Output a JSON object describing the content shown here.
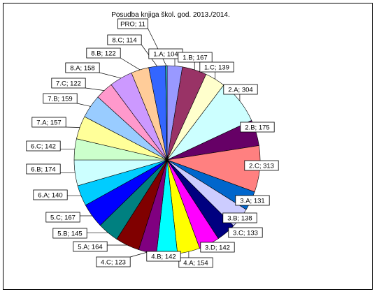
{
  "chart_data": {
    "type": "pie",
    "title": "Posudba knjiga škol. god. 2013./2014.",
    "slices": [
      {
        "label": "1.A; 104",
        "name": "1.A",
        "value": 104,
        "color": "#9999ff"
      },
      {
        "label": "1.B; 167",
        "name": "1.B",
        "value": 167,
        "color": "#993366"
      },
      {
        "label": "1.C; 139",
        "name": "1.C",
        "value": 139,
        "color": "#ffffcc"
      },
      {
        "label": "2.A; 304",
        "name": "2.A",
        "value": 304,
        "color": "#ccffff"
      },
      {
        "label": "2.B; 175",
        "name": "2.B",
        "value": 175,
        "color": "#660066"
      },
      {
        "label": "2.C; 313",
        "name": "2.C",
        "value": 313,
        "color": "#ff8080"
      },
      {
        "label": "3.A; 131",
        "name": "3.A",
        "value": 131,
        "color": "#0066cc"
      },
      {
        "label": "3.B; 138",
        "name": "3.B",
        "value": 138,
        "color": "#ccccff"
      },
      {
        "label": "3.C; 133",
        "name": "3.C",
        "value": 133,
        "color": "#000080"
      },
      {
        "label": "3.D; 142",
        "name": "3.D",
        "value": 142,
        "color": "#ff00ff"
      },
      {
        "label": "4.A; 154",
        "name": "4.A",
        "value": 154,
        "color": "#ffff00"
      },
      {
        "label": "4.B; 142",
        "name": "4.B",
        "value": 142,
        "color": "#00ffff"
      },
      {
        "label": "4.C; 123",
        "name": "4.C",
        "value": 123,
        "color": "#800080"
      },
      {
        "label": "5.A; 164",
        "name": "5.A",
        "value": 164,
        "color": "#800000"
      },
      {
        "label": "5.B; 145",
        "name": "5.B",
        "value": 145,
        "color": "#008080"
      },
      {
        "label": "5.C; 167",
        "name": "5.C",
        "value": 167,
        "color": "#0000ff"
      },
      {
        "label": "6.A; 140",
        "name": "6.A",
        "value": 140,
        "color": "#00ccff"
      },
      {
        "label": "6.B; 174",
        "name": "6.B",
        "value": 174,
        "color": "#ccffff"
      },
      {
        "label": "6.C; 142",
        "name": "6.C",
        "value": 142,
        "color": "#ccffcc"
      },
      {
        "label": "7.A; 157",
        "name": "7.A",
        "value": 157,
        "color": "#ffff99"
      },
      {
        "label": "7.B; 159",
        "name": "7.B",
        "value": 159,
        "color": "#99ccff"
      },
      {
        "label": "7.C; 122",
        "name": "7.C",
        "value": 122,
        "color": "#ff99cc"
      },
      {
        "label": "8.A; 158",
        "name": "8.A",
        "value": 158,
        "color": "#cc99ff"
      },
      {
        "label": "8.B; 122",
        "name": "8.B",
        "value": 122,
        "color": "#ffcc99"
      },
      {
        "label": "8.C; 114",
        "name": "8.C",
        "value": 114,
        "color": "#3366ff"
      },
      {
        "label": "PRO; 11",
        "name": "PRO",
        "value": 11,
        "color": "#33cccc"
      }
    ],
    "start_angle": "12 o'clock",
    "direction": "clockwise",
    "legend": "none",
    "data_labels": "boxed, with leader lines"
  }
}
